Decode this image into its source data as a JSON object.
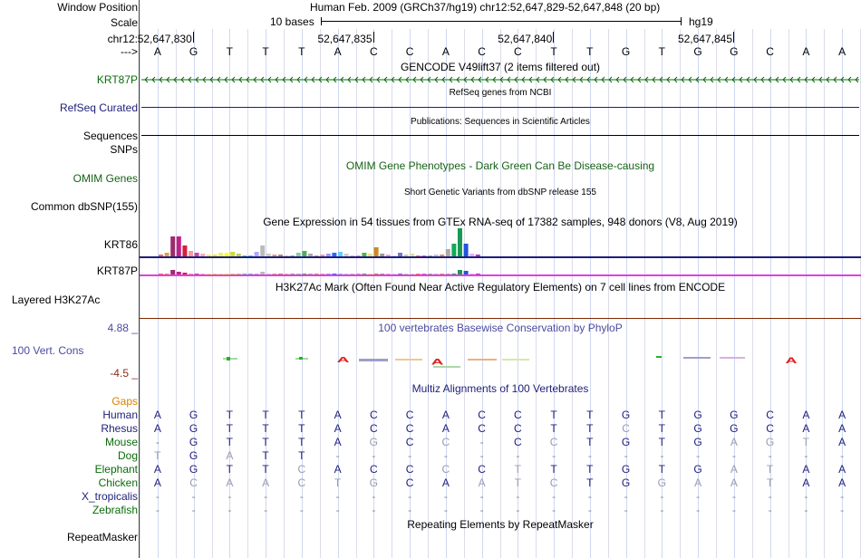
{
  "header": {
    "window_position_label": "Window Position",
    "window_position_value": "Human Feb. 2009 (GRCh37/hg19)   chr12:52,647,829-52,647,848 (20 bp)",
    "scale_label": "Scale",
    "scale_value": "10 bases",
    "assembly": "hg19",
    "chrom_label": "chr12:",
    "arrow_label": "--->",
    "positions": [
      "52,647,830",
      "52,647,835",
      "52,647,840",
      "52,647,845"
    ]
  },
  "reference_bases": [
    "A",
    "G",
    "T",
    "T",
    "T",
    "A",
    "C",
    "C",
    "A",
    "C",
    "C",
    "T",
    "T",
    "G",
    "T",
    "G",
    "G",
    "C",
    "A",
    "A"
  ],
  "tracks": {
    "gencode_title": "GENCODE V49lift37 (2 items filtered out)",
    "gencode_gene": "KRT87P",
    "refseq_title": "RefSeq genes from NCBI",
    "refseq_label": "RefSeq Curated",
    "pubs_title": "Publications: Sequences in Scientific Articles",
    "sequences_label": "Sequences",
    "snps_label": "SNPs",
    "omim_title": "OMIM Gene Phenotypes - Dark Green Can Be Disease-causing",
    "omim_label": "OMIM Genes",
    "dbsnp_title": "Short Genetic Variants from dbSNP release 155",
    "dbsnp_label": "Common dbSNP(155)",
    "gtex_title": "Gene Expression in 54 tissues from GTEx RNA-seq of 17382 samples, 948 donors (V8, Aug 2019)",
    "gtex_gene1": "KRT86",
    "gtex_gene2": "KRT87P",
    "h3k27ac_title": "H3K27Ac Mark (Often Found Near Active Regulatory Elements) on 7 cell lines from ENCODE",
    "h3k27ac_label": "Layered H3K27Ac",
    "phylop_title": "100 vertebrates Basewise Conservation by PhyloP",
    "phylop_label": "100 Vert. Cons",
    "phylop_max": "4.88 _",
    "phylop_min": "-4.5 _",
    "multiz_title": "Multiz Alignments of 100 Vertebrates",
    "gaps_label": "Gaps",
    "rmsk_title": "Repeating Elements by RepeatMasker",
    "rmsk_label": "RepeatMasker"
  },
  "colors": {
    "gene_green": "#0a6b0a",
    "refseq_navy": "#1e1e7a",
    "h3k27ac_line": "#e040e0",
    "phylop_blue": "#4b4ba0",
    "gaps_orange": "#d98200"
  },
  "gtex_expression_kr86": [
    2,
    4,
    22,
    22,
    12,
    6,
    4,
    3,
    2,
    2,
    4,
    4,
    5,
    3,
    1,
    1,
    5,
    12,
    3,
    2,
    2,
    1,
    1,
    4,
    6,
    3,
    1,
    2,
    3,
    4,
    5,
    3,
    1,
    1,
    4,
    3,
    10,
    3,
    2,
    1,
    4,
    2,
    3,
    1,
    1,
    1,
    2,
    2,
    8,
    14,
    31,
    14,
    3,
    2
  ],
  "gtex_expression_krt87p": [
    1,
    1,
    5,
    3,
    2,
    1,
    1,
    1,
    1,
    1,
    1,
    1,
    1,
    1,
    1,
    1,
    1,
    3,
    1,
    1,
    1,
    1,
    1,
    1,
    1,
    1,
    1,
    1,
    1,
    1,
    1,
    1,
    1,
    1,
    1,
    1,
    1,
    1,
    1,
    1,
    1,
    1,
    1,
    1,
    1,
    1,
    1,
    1,
    1,
    1,
    5,
    4,
    1,
    1
  ],
  "alignments": [
    {
      "species": "Human",
      "color": "#1e1e7a",
      "bases": [
        "A",
        "G",
        "T",
        "T",
        "T",
        "A",
        "C",
        "C",
        "A",
        "C",
        "C",
        "T",
        "T",
        "G",
        "T",
        "G",
        "G",
        "C",
        "A",
        "A"
      ]
    },
    {
      "species": "Rhesus",
      "color": "#1e1e7a",
      "bases": [
        "A",
        "G",
        "T",
        "T",
        "T",
        "A",
        "C",
        "C",
        "A",
        "C",
        "C",
        "T",
        "T",
        "C",
        "T",
        "G",
        "G",
        "C",
        "A",
        "A"
      ]
    },
    {
      "species": "Mouse",
      "color": "#0a6b0a",
      "bases": [
        "-",
        "G",
        "T",
        "T",
        "T",
        "A",
        "G",
        "C",
        "C",
        "-",
        "C",
        "C",
        "T",
        "G",
        "T",
        "G",
        "A",
        "G",
        "T",
        "A"
      ]
    },
    {
      "species": "Dog",
      "color": "#0a6b0a",
      "bases": [
        "T",
        "G",
        "A",
        "T",
        "T",
        "-",
        "-",
        "-",
        "-",
        "-",
        "-",
        "-",
        "-",
        "-",
        "-",
        "-",
        "-",
        "-",
        "-",
        "-"
      ]
    },
    {
      "species": "Elephant",
      "color": "#0a6b0a",
      "bases": [
        "A",
        "G",
        "T",
        "T",
        "C",
        "A",
        "C",
        "C",
        "C",
        "C",
        "T",
        "T",
        "T",
        "G",
        "T",
        "G",
        "A",
        "T",
        "A",
        "A"
      ]
    },
    {
      "species": "Chicken",
      "color": "#0a6b0a",
      "bases": [
        "A",
        "C",
        "A",
        "A",
        "C",
        "T",
        "G",
        "C",
        "A",
        "A",
        "T",
        "C",
        "T",
        "G",
        "G",
        "A",
        "A",
        "T",
        "A",
        "A"
      ]
    },
    {
      "species": "X_tropicalis",
      "color": "#1e1e7a",
      "bases": [
        "-",
        "-",
        "-",
        "-",
        "-",
        "-",
        "-",
        "-",
        "-",
        "-",
        "-",
        "-",
        "-",
        "-",
        "-",
        "-",
        "-",
        "-",
        "-",
        "-"
      ]
    },
    {
      "species": "Zebrafish",
      "color": "#0a6b0a",
      "bases": [
        "-",
        "-",
        "-",
        "-",
        "-",
        "-",
        "-",
        "-",
        "-",
        "-",
        "-",
        "-",
        "-",
        "-",
        "-",
        "-",
        "-",
        "-",
        "-",
        "-"
      ]
    }
  ]
}
